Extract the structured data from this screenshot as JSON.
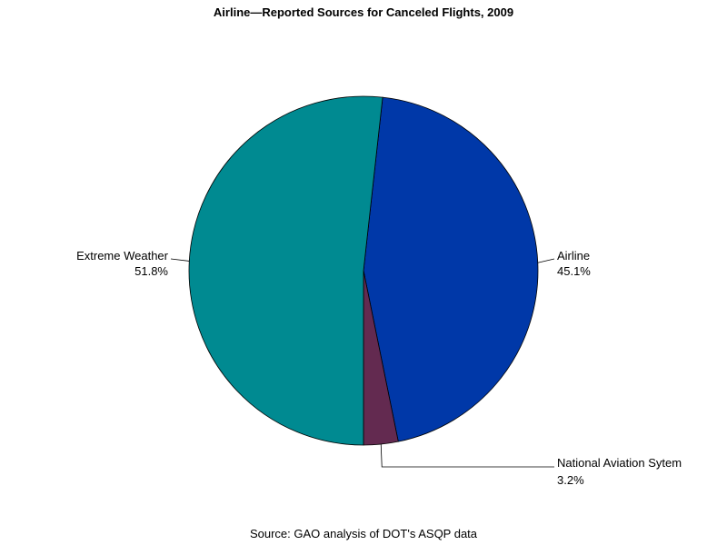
{
  "chart_data": {
    "type": "pie",
    "title": "Airline—Reported Sources for Canceled Flights, 2009",
    "source": "Source: GAO analysis of DOT's ASQP data",
    "slices": [
      {
        "label": "Airline",
        "value": 45.1,
        "display": "45.1%",
        "color": "#0038a8"
      },
      {
        "label": "National Aviation Sytem",
        "value": 3.2,
        "display": "3.2%",
        "color": "#632a50"
      },
      {
        "label": "Extreme Weather",
        "value": 51.8,
        "display": "51.8%",
        "color": "#008a91"
      }
    ]
  }
}
